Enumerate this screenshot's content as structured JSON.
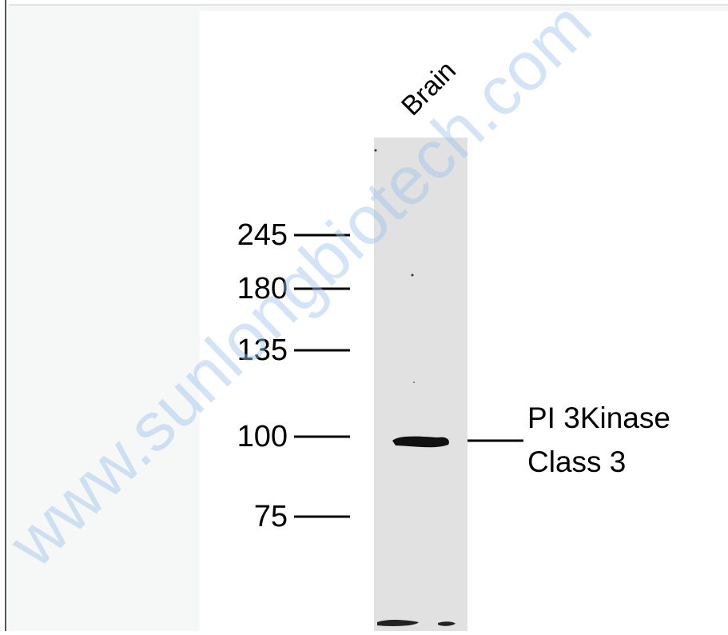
{
  "lane_label": "Brain",
  "markers": [
    245,
    180,
    135,
    100,
    75
  ],
  "band_label": [
    "PI 3Kinase",
    "Class 3"
  ],
  "watermark": "www.sunlongbiotech.com"
}
